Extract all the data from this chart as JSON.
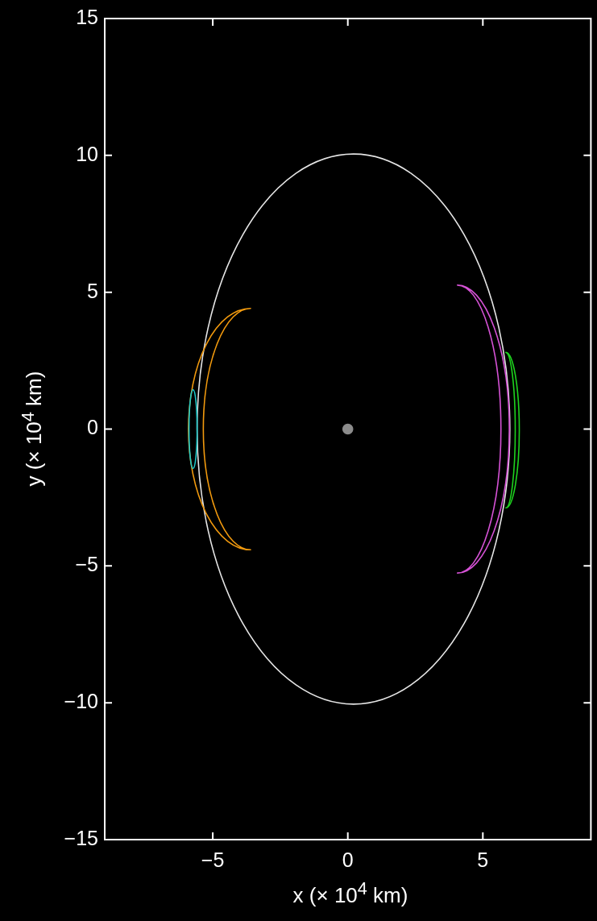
{
  "chart_data": {
    "type": "scatter",
    "xlabel": "x (× 10$^{4}$ km)",
    "ylabel": "y (× 10$^{4}$ km)",
    "xlim": [
      -9,
      9
    ],
    "ylim": [
      -15,
      15
    ],
    "xticks": [
      {
        "value": -5,
        "label": "−5"
      },
      0,
      5
    ],
    "yticks": [
      {
        "value": -15,
        "label": "−15"
      },
      {
        "value": -10,
        "label": "−10"
      },
      {
        "value": -5,
        "label": "−5"
      },
      0,
      5,
      10,
      15
    ],
    "grid": false,
    "legend": false,
    "marker": "circle",
    "series": [
      {
        "color": "#8c8c8c",
        "x": [
          0
        ],
        "values": [
          0
        ]
      }
    ]
  }
}
